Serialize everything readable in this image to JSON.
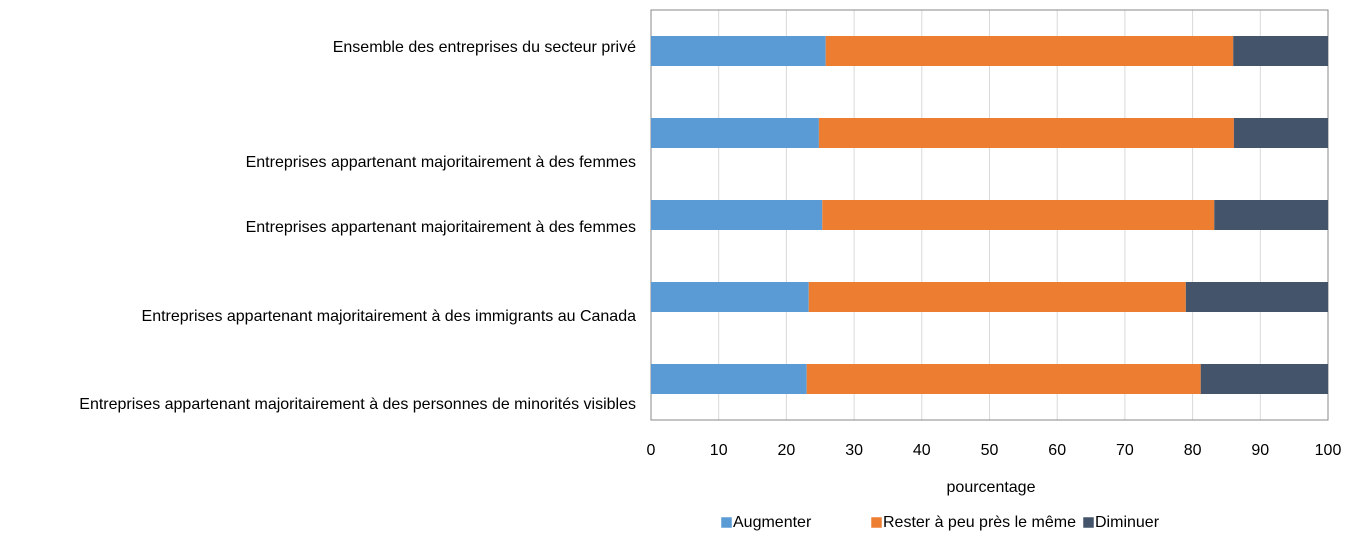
{
  "chart_data": {
    "type": "bar",
    "orientation": "horizontal",
    "stacked": true,
    "categories": [
      "Ensemble des entreprises du secteur privé",
      "Entreprises appartenant majoritairement à des femmes",
      "Entreprises appartenant majoritairement à des femmes",
      "Entreprises appartenant majoritairement à des immigrants au Canada",
      "Entreprises appartenant majoritairement à des personnes de minorités visibles"
    ],
    "series": [
      {
        "name": "Augmenter",
        "color": "#5b9bd5",
        "values": [
          25.8,
          24.8,
          25.3,
          23.3,
          23.0
        ]
      },
      {
        "name": "Rester à peu près le même",
        "color": "#ed7d31",
        "values": [
          60.2,
          61.3,
          57.9,
          55.7,
          58.2
        ]
      },
      {
        "name": "Diminuer",
        "color": "#44546a",
        "values": [
          14.0,
          13.9,
          16.8,
          21.0,
          18.8
        ]
      }
    ],
    "xlabel": "pourcentage",
    "xlim": [
      0,
      100
    ],
    "xticks": [
      0,
      10,
      20,
      30,
      40,
      50,
      60,
      70,
      80,
      90,
      100
    ],
    "grid": true,
    "legend": "bottom"
  }
}
